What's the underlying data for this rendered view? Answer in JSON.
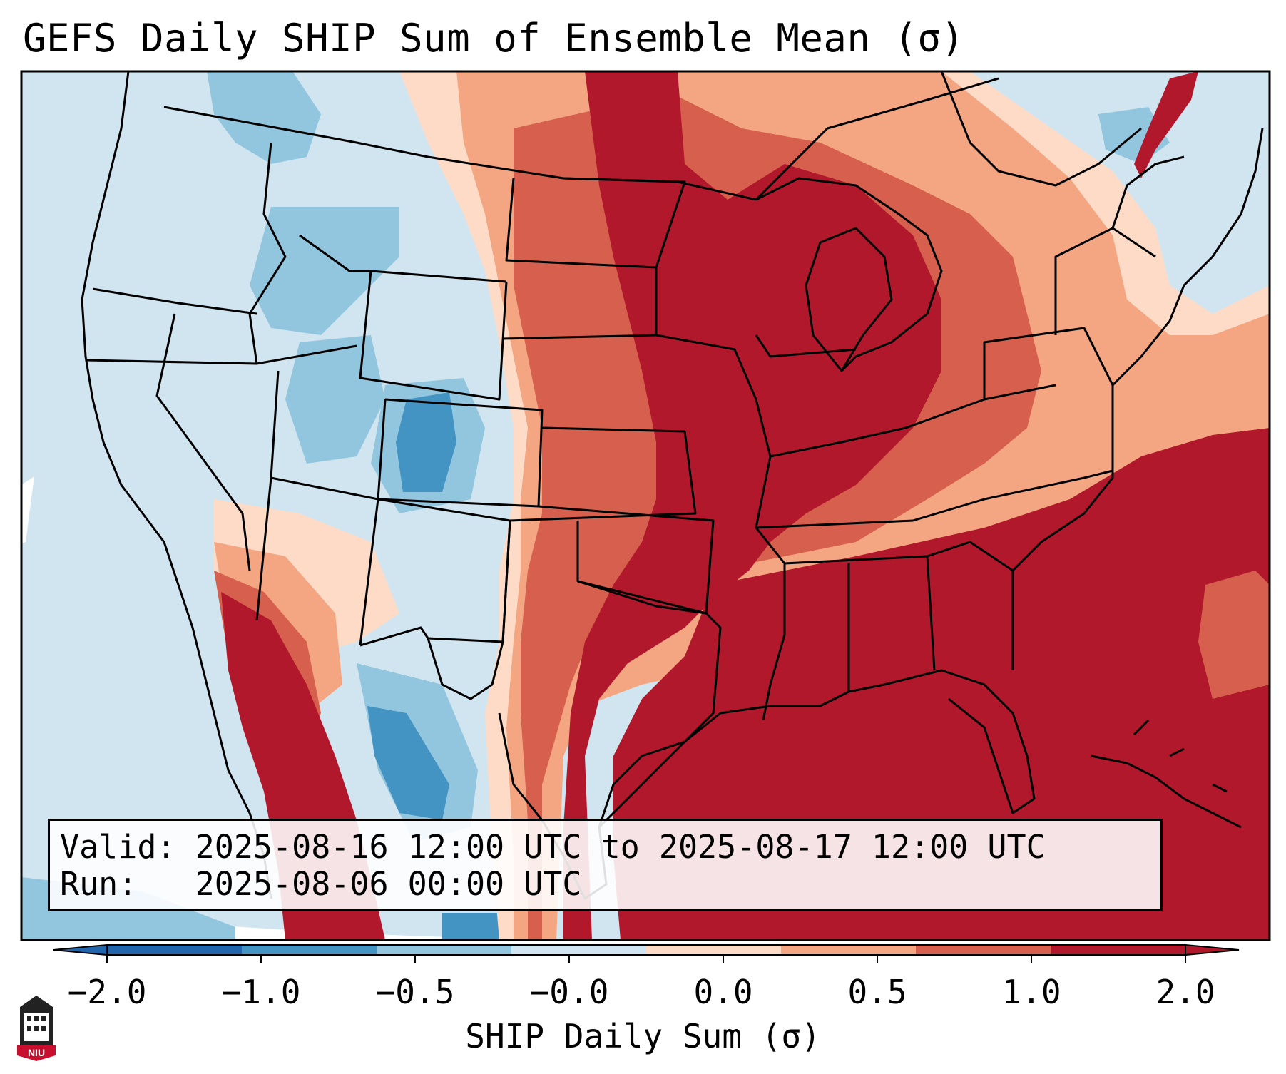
{
  "title": "GEFS Daily SHIP Sum of Ensemble Mean (σ)",
  "info": {
    "valid_line": "Valid: 2025-08-16 12:00 UTC to 2025-08-17 12:00 UTC",
    "run_line": "Run:   2025-08-06 00:00 UTC"
  },
  "colorbar": {
    "label": "SHIP Daily Sum (σ)",
    "ticks": [
      "−2.0",
      "−1.0",
      "−0.5",
      "−0.0",
      "0.0",
      "0.5",
      "1.0",
      "2.0"
    ],
    "bins": [
      "#2166ac",
      "#4393c3",
      "#92c5de",
      "#d1e5f0",
      "#fddbc7",
      "#f4a582",
      "#d6604d",
      "#b2182b"
    ],
    "under_color": "#2166ac",
    "over_color": "#b2182b"
  },
  "logo": {
    "text": "NIU",
    "icon": "niu-seal-icon"
  },
  "map": {
    "projection": "lambert-conformal",
    "region": "CONUS",
    "basemap_color": "#d1e5f0"
  }
}
